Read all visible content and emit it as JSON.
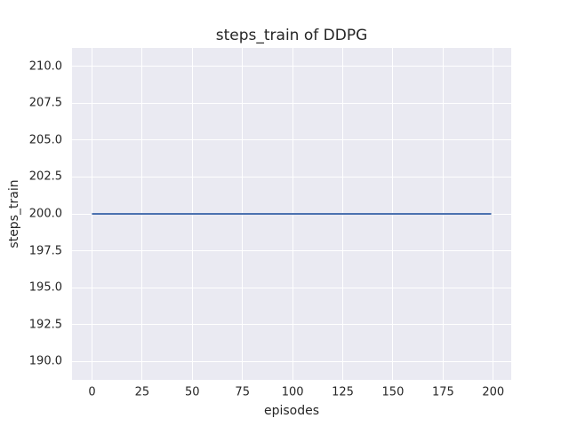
{
  "chart_data": {
    "type": "line",
    "title": "steps_train of DDPG",
    "xlabel": "episodes",
    "ylabel": "steps_train",
    "xlim": [
      -9.95,
      208.95
    ],
    "ylim": [
      188.75,
      211.25
    ],
    "x_ticks": {
      "values": [
        0,
        25,
        50,
        75,
        100,
        125,
        150,
        175,
        200
      ],
      "labels": [
        "0",
        "25",
        "50",
        "75",
        "100",
        "125",
        "150",
        "175",
        "200"
      ]
    },
    "y_ticks": {
      "values": [
        190.0,
        192.5,
        195.0,
        197.5,
        200.0,
        202.5,
        205.0,
        207.5,
        210.0
      ],
      "labels": [
        "190.0",
        "192.5",
        "195.0",
        "197.5",
        "200.0",
        "202.5",
        "205.0",
        "207.5",
        "210.0"
      ]
    },
    "grid": true,
    "legend_position": "none",
    "series": [
      {
        "name": "steps_train",
        "color": "#4c72b0",
        "line_width": 2,
        "x": [
          0,
          199
        ],
        "y": [
          200,
          200
        ]
      }
    ],
    "colors": {
      "figure_background": "#ffffff",
      "plot_background": "#eaeaf2",
      "grid_color": "#ffffff",
      "text_color": "#262626"
    }
  }
}
